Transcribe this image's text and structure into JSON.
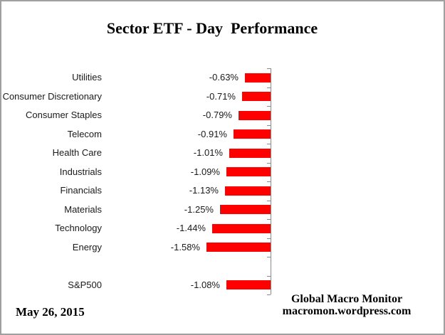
{
  "title": "Sector ETF - Day  Performance",
  "footer": {
    "date": "May 26, 2015",
    "credit_line1": "Global Macro Monitor",
    "credit_line2": "macromon.wordpress.com"
  },
  "chart_data": {
    "type": "bar",
    "orientation": "horizontal",
    "title": "Sector ETF - Day  Performance",
    "xlabel": "",
    "ylabel": "",
    "xlim": [
      -2,
      0
    ],
    "grid": false,
    "legend": "none",
    "bar_color": "#ff0000",
    "axis_color": "#8a8a8a",
    "categories": [
      "Utilities",
      "Consumer Discretionary",
      "Consumer Staples",
      "Telecom",
      "Health Care",
      "Industrials",
      "Financials",
      "Materials",
      "Technology",
      "Energy",
      "",
      "S&P500"
    ],
    "values": [
      -0.63,
      -0.71,
      -0.79,
      -0.91,
      -1.01,
      -1.09,
      -1.13,
      -1.25,
      -1.44,
      -1.58,
      null,
      -1.08
    ],
    "value_labels": [
      "-0.63%",
      "-0.71%",
      "-0.79%",
      "-0.91%",
      "-1.01%",
      "-1.09%",
      "-1.13%",
      "-1.25%",
      "-1.44%",
      "-1.58%",
      "",
      "-1.08%"
    ]
  }
}
